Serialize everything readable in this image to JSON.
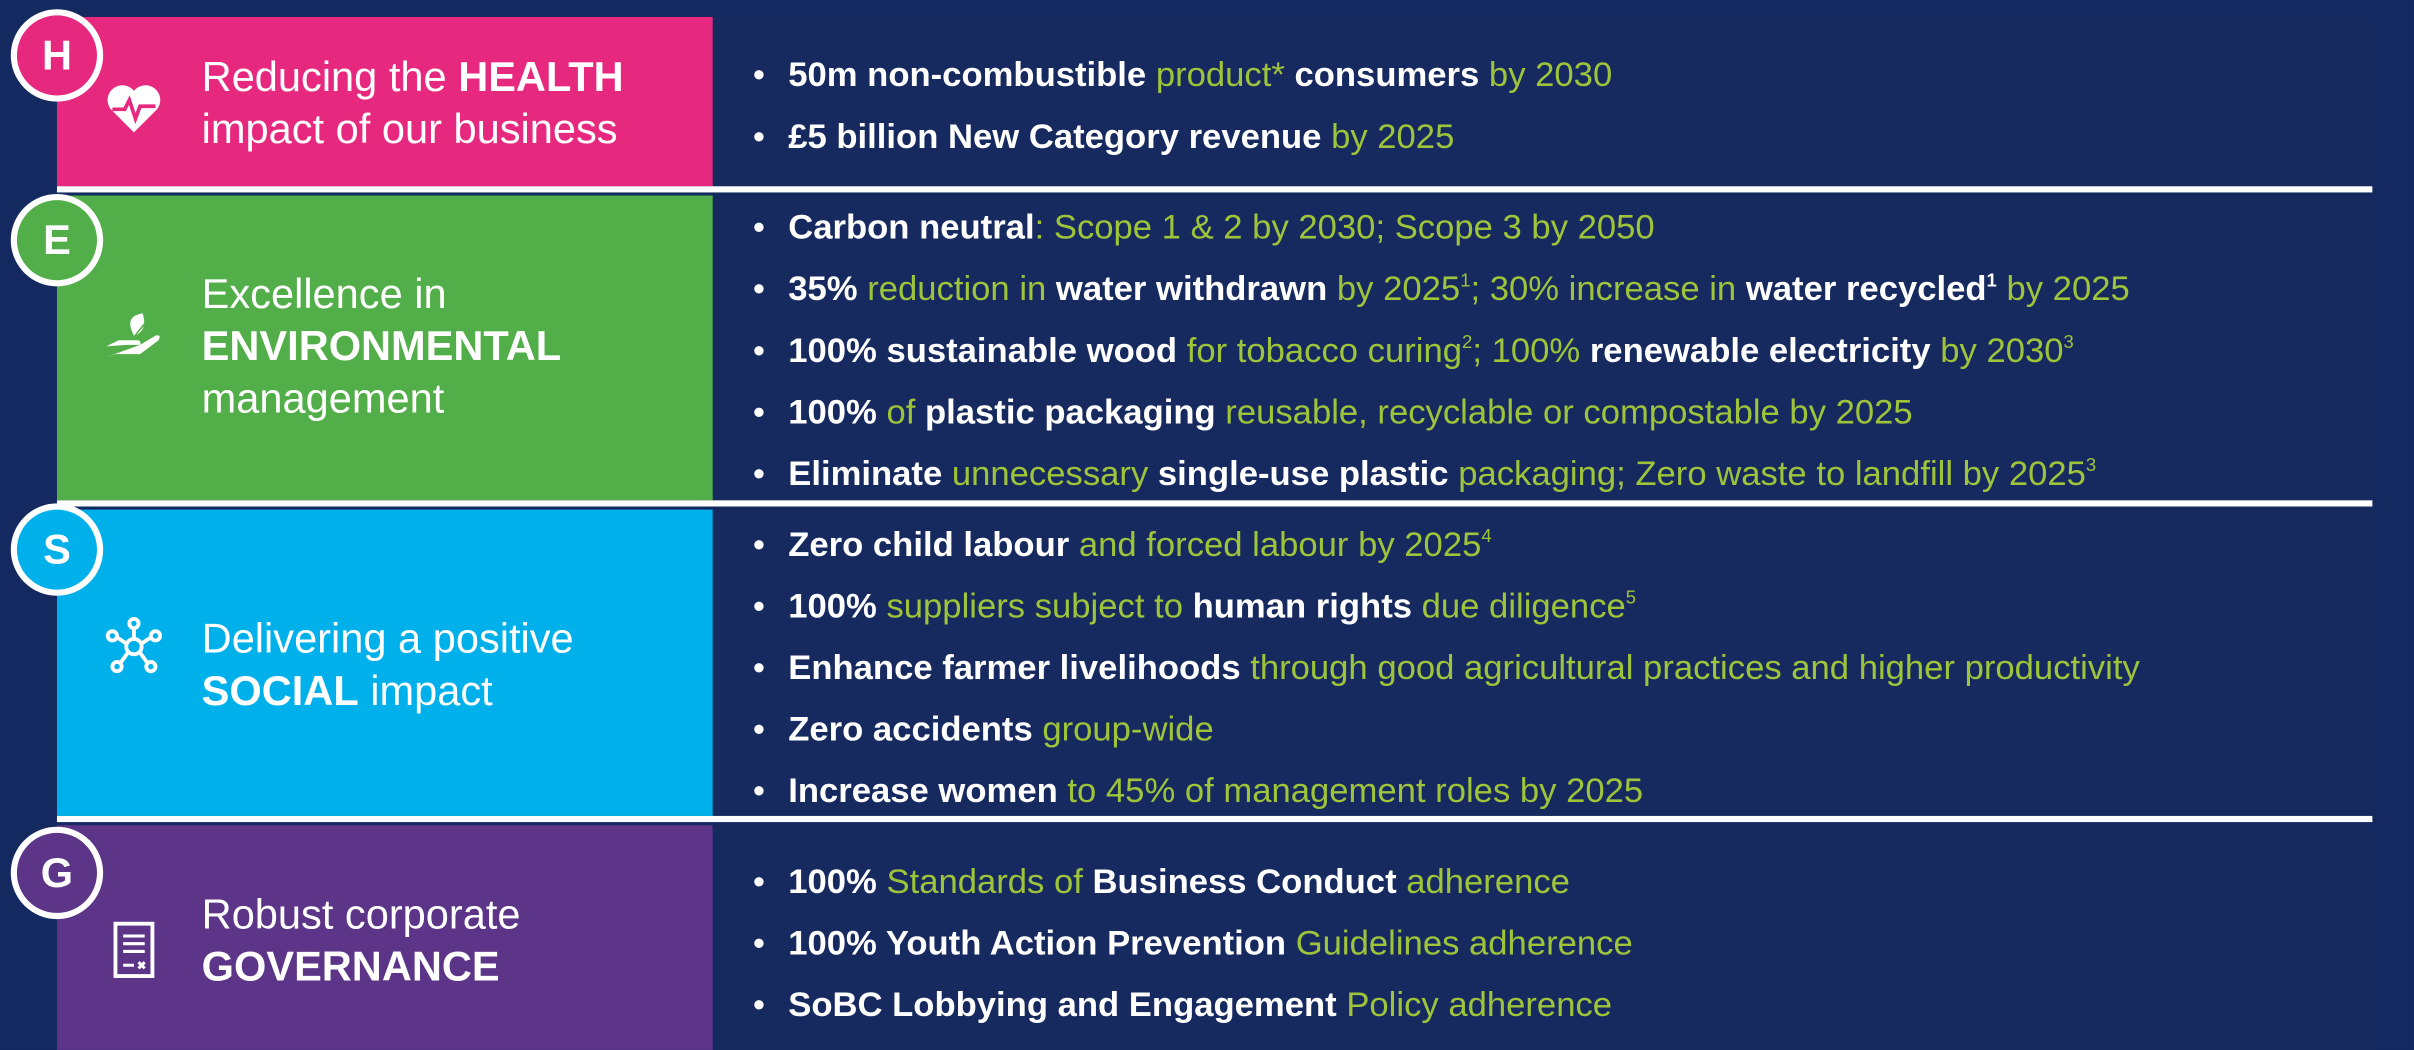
{
  "sections": [
    {
      "letter": "H",
      "color": "#e6287f",
      "title": [
        [
          {
            "t": "Reducing the ",
            "s": "l"
          },
          {
            "t": "HEALTH",
            "s": "b"
          }
        ],
        [
          {
            "t": "impact of our business",
            "s": "l"
          }
        ]
      ],
      "bullets": [
        [
          {
            "t": "50m non-combustible ",
            "s": "b"
          },
          {
            "t": "product* ",
            "s": "g"
          },
          {
            "t": "consumers ",
            "s": "b"
          },
          {
            "t": "by 2030",
            "s": "g"
          }
        ],
        [
          {
            "t": "£5 billion New Category revenue ",
            "s": "b"
          },
          {
            "t": "by 2025",
            "s": "g"
          }
        ]
      ]
    },
    {
      "letter": "E",
      "color": "#52ae48",
      "title": [
        [
          {
            "t": "Excellence in",
            "s": "l"
          }
        ],
        [
          {
            "t": "ENVIRONMENTAL",
            "s": "b"
          }
        ],
        [
          {
            "t": "management",
            "s": "l"
          }
        ]
      ],
      "bullets": [
        [
          {
            "t": "Carbon neutral",
            "s": "b"
          },
          {
            "t": ": Scope 1 & 2 by 2030; Scope 3 by 2050",
            "s": "g"
          }
        ],
        [
          {
            "t": "35% ",
            "s": "b"
          },
          {
            "t": "reduction in ",
            "s": "g"
          },
          {
            "t": "water withdrawn ",
            "s": "b"
          },
          {
            "t": "by 2025",
            "s": "g"
          },
          {
            "t": "1",
            "s": "gs"
          },
          {
            "t": "; 30% increase in ",
            "s": "g"
          },
          {
            "t": "water recycled",
            "s": "b"
          },
          {
            "t": "1",
            "s": "bs"
          },
          {
            "t": " by 2025",
            "s": "g"
          }
        ],
        [
          {
            "t": "100% sustainable wood ",
            "s": "b"
          },
          {
            "t": "for tobacco curing",
            "s": "g"
          },
          {
            "t": "2",
            "s": "gs"
          },
          {
            "t": "; 100% ",
            "s": "g"
          },
          {
            "t": "renewable electricity ",
            "s": "b"
          },
          {
            "t": "by 2030",
            "s": "g"
          },
          {
            "t": "3",
            "s": "gs"
          }
        ],
        [
          {
            "t": "100% ",
            "s": "b"
          },
          {
            "t": "of ",
            "s": "g"
          },
          {
            "t": "plastic packaging ",
            "s": "b"
          },
          {
            "t": "reusable, recyclable or compostable by 2025",
            "s": "g"
          }
        ],
        [
          {
            "t": "Eliminate ",
            "s": "b"
          },
          {
            "t": "unnecessary ",
            "s": "g"
          },
          {
            "t": "single-use plastic ",
            "s": "b"
          },
          {
            "t": "packaging; Zero waste to landfill by 2025",
            "s": "g"
          },
          {
            "t": "3",
            "s": "gs"
          }
        ]
      ]
    },
    {
      "letter": "S",
      "color": "#00b0ea",
      "title": [
        [
          {
            "t": "Delivering a positive",
            "s": "l"
          }
        ],
        [
          {
            "t": "SOCIAL",
            "s": "b"
          },
          {
            "t": " impact",
            "s": "l"
          }
        ]
      ],
      "bullets": [
        [
          {
            "t": "Zero child labour ",
            "s": "b"
          },
          {
            "t": "and forced labour by 2025",
            "s": "g"
          },
          {
            "t": "4",
            "s": "gs"
          }
        ],
        [
          {
            "t": "100% ",
            "s": "b"
          },
          {
            "t": "suppliers subject to ",
            "s": "g"
          },
          {
            "t": "human rights ",
            "s": "b"
          },
          {
            "t": "due diligence",
            "s": "g"
          },
          {
            "t": "5",
            "s": "gs"
          }
        ],
        [
          {
            "t": "Enhance farmer livelihoods ",
            "s": "b"
          },
          {
            "t": "through good agricultural practices and higher productivity",
            "s": "g"
          }
        ],
        [
          {
            "t": "Zero accidents ",
            "s": "b"
          },
          {
            "t": "group-wide",
            "s": "g"
          }
        ],
        [
          {
            "t": "Increase women ",
            "s": "b"
          },
          {
            "t": "to 45% of management roles by 2025",
            "s": "g"
          }
        ]
      ]
    },
    {
      "letter": "G",
      "color": "#5c3488",
      "title": [
        [
          {
            "t": "Robust corporate",
            "s": "l"
          }
        ],
        [
          {
            "t": "GOVERNANCE",
            "s": "b"
          }
        ]
      ],
      "bullets": [
        [
          {
            "t": "100% ",
            "s": "b"
          },
          {
            "t": "Standards of ",
            "s": "g"
          },
          {
            "t": "Business Conduct ",
            "s": "b"
          },
          {
            "t": "adherence",
            "s": "g"
          }
        ],
        [
          {
            "t": "100% Youth Action Prevention ",
            "s": "b"
          },
          {
            "t": "Guidelines adherence",
            "s": "g"
          }
        ],
        [
          {
            "t": "SoBC Lobbying and Engagement ",
            "s": "b"
          },
          {
            "t": "Policy adherence",
            "s": "g"
          }
        ]
      ]
    }
  ]
}
